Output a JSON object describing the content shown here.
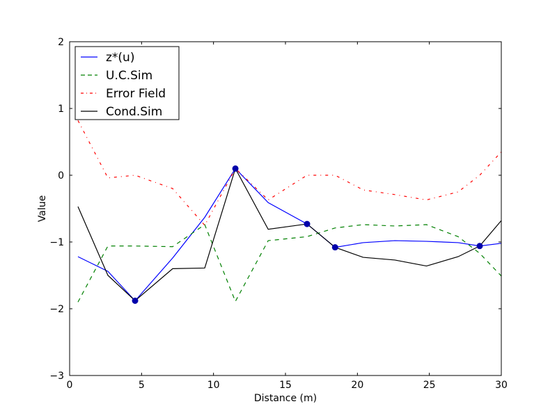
{
  "chart_data": {
    "type": "line",
    "title": "",
    "xlabel": "Distance (m)",
    "ylabel": "Value",
    "xlim": [
      0,
      30
    ],
    "ylim": [
      -3,
      2
    ],
    "xticks": [
      0,
      5,
      10,
      15,
      20,
      25,
      30
    ],
    "yticks": [
      -3,
      -2,
      -1,
      0,
      1,
      2
    ],
    "xtick_labels": [
      "0",
      "5",
      "10",
      "15",
      "20",
      "25",
      "30"
    ],
    "ytick_labels": [
      "−3",
      "−2",
      "−1",
      "0",
      "1",
      "2"
    ],
    "grid": false,
    "legend_position": "top-left",
    "x": [
      0.58,
      2.66,
      4.55,
      7.16,
      9.39,
      11.52,
      13.8,
      16.5,
      18.45,
      20.4,
      22.6,
      24.8,
      27.0,
      28.5,
      30.0
    ],
    "series": [
      {
        "name": "z*(u)",
        "color": "#0000ff",
        "style": "solid",
        "values": [
          -1.22,
          -1.44,
          -1.88,
          -1.24,
          -0.63,
          0.1,
          -0.41,
          -0.73,
          -1.08,
          -1.01,
          -0.98,
          -0.99,
          -1.01,
          -1.06,
          -1.02
        ]
      },
      {
        "name": "U.C.Sim",
        "color": "#008000",
        "style": "dashed",
        "values": [
          -1.9,
          -1.06,
          -1.06,
          -1.07,
          -0.74,
          -1.89,
          -0.98,
          -0.92,
          -0.79,
          -0.74,
          -0.76,
          -0.74,
          -0.92,
          -1.17,
          -1.51
        ]
      },
      {
        "name": "Error Field",
        "color": "#ff0000",
        "style": "dashdot",
        "values": [
          0.82,
          -0.04,
          0.0,
          -0.2,
          -0.75,
          0.1,
          -0.37,
          0.0,
          0.0,
          -0.22,
          -0.29,
          -0.37,
          -0.25,
          0.0,
          0.35
        ]
      },
      {
        "name": "Cond.Sim",
        "color": "#000000",
        "style": "solid",
        "values": [
          -0.47,
          -1.5,
          -1.88,
          -1.4,
          -1.39,
          0.1,
          -0.81,
          -0.73,
          -1.08,
          -1.23,
          -1.27,
          -1.36,
          -1.22,
          -1.06,
          -0.68
        ]
      }
    ],
    "conditioning_points": {
      "color": "#0000aa",
      "x": [
        4.55,
        11.52,
        16.5,
        18.45,
        28.5
      ],
      "y": [
        -1.88,
        0.1,
        -0.73,
        -1.08,
        -1.06
      ]
    }
  }
}
